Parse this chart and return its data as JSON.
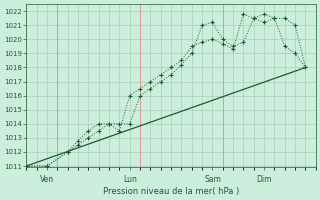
{
  "bg_color": "#cceedd",
  "grid_color": "#aaccbb",
  "line_color": "#1a5c2a",
  "xlabel": "Pression niveau de la mer( hPa )",
  "xlabel_color": "#1a5c2a",
  "tick_color": "#1a5c2a",
  "ylim_min": 1011,
  "ylim_max": 1022.5,
  "yticks": [
    1011,
    1012,
    1013,
    1014,
    1015,
    1016,
    1017,
    1018,
    1019,
    1020,
    1021,
    1022
  ],
  "xlim_min": 0,
  "xlim_max": 28,
  "series1_x": [
    0,
    2,
    4,
    5,
    6,
    7,
    8,
    9,
    10,
    11,
    12,
    13,
    14,
    15,
    16,
    17,
    18,
    19,
    20,
    21,
    22,
    23,
    24,
    25,
    26,
    27
  ],
  "series1_y": [
    1011,
    1011,
    1012,
    1012.5,
    1013,
    1013.5,
    1014,
    1014,
    1014,
    1016,
    1016.5,
    1017,
    1017.5,
    1018.2,
    1019,
    1021,
    1021.2,
    1020,
    1019.5,
    1019.8,
    1021.5,
    1021.8,
    1021.5,
    1021.5,
    1021,
    1018
  ],
  "series2_x": [
    0,
    2,
    4,
    5,
    6,
    7,
    8,
    9,
    10,
    11,
    12,
    13,
    14,
    15,
    16,
    17,
    18,
    19,
    20,
    21,
    22,
    23,
    24,
    25,
    26,
    27
  ],
  "series2_y": [
    1011,
    1011,
    1012,
    1012.8,
    1013.5,
    1014,
    1014,
    1013.5,
    1016,
    1016.5,
    1017,
    1017.5,
    1018,
    1018.5,
    1019.5,
    1019.8,
    1020,
    1019.7,
    1019.3,
    1021.8,
    1021.5,
    1021.2,
    1021.5,
    1019.5,
    1019,
    1018
  ],
  "series3_x": [
    0,
    27
  ],
  "series3_y": [
    1011,
    1018
  ],
  "vlines_x": [
    3,
    11,
    19
  ],
  "vline_color": "#dd9999",
  "xticklabels": [
    "Ven",
    "Lun",
    "Sam",
    "Dim"
  ],
  "xtick_positions": [
    2,
    10,
    18,
    23
  ]
}
